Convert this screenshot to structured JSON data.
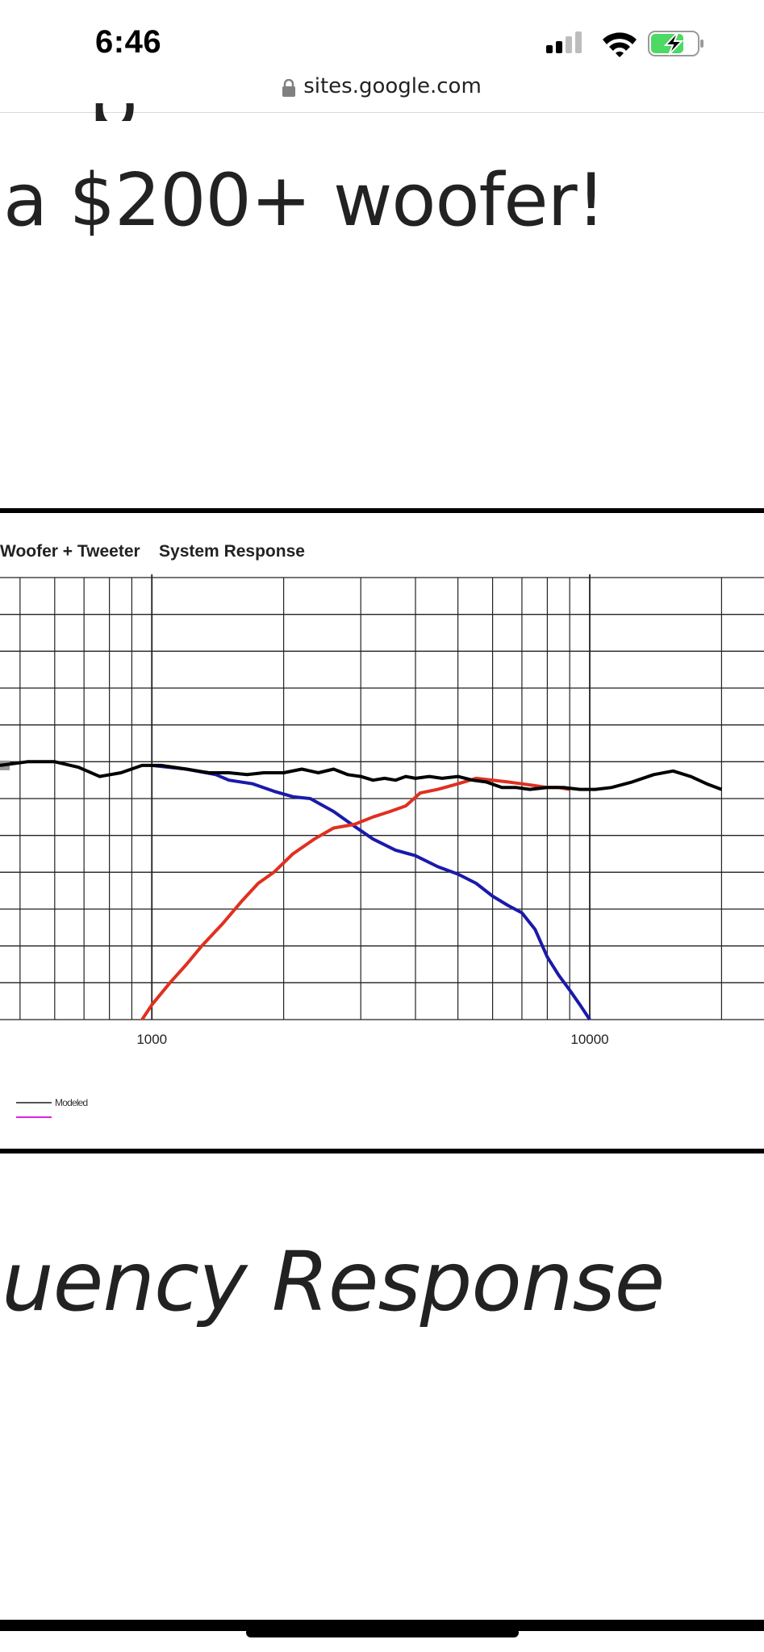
{
  "status_bar": {
    "time": "6:46",
    "icons": [
      "cellular-signal-icon",
      "wifi-icon",
      "battery-charging-icon"
    ]
  },
  "browser": {
    "url": "sites.google.com",
    "lock_icon": "lock-icon"
  },
  "page": {
    "headline": "a $200+ woofer!",
    "subheading": "uency Response"
  },
  "chart_data": {
    "type": "line",
    "title": "Woofer + Tweeter    System Response",
    "x_scale": "log",
    "x_tick_labels": [
      "1000",
      "10000"
    ],
    "x_ticks": [
      1000,
      10000
    ],
    "xlim": [
      450,
      25000
    ],
    "ylim": [
      -12,
      0
    ],
    "grid": true,
    "legend": {
      "placement": "bottom-left",
      "entries": [
        "Modeled",
        ""
      ]
    },
    "colors": {
      "system": "#000000",
      "woofer": "#1a1aaa",
      "tweeter": "#e03020",
      "modeled": "#555555",
      "legend_magenta": "#dd22dd"
    },
    "series": [
      {
        "x": [
          450,
          520,
          600,
          680,
          760,
          850,
          950,
          1050,
          1200,
          1350,
          1500,
          1650,
          1800,
          2000,
          2200,
          2400,
          2600,
          2800,
          3000,
          3200,
          3400,
          3600,
          3800,
          4000,
          4300,
          4600,
          5000,
          5400,
          5800,
          6300,
          6800,
          7300,
          8000,
          8700,
          9500,
          10300,
          11200,
          12500,
          14000,
          15500,
          17000,
          18500,
          20000
        ],
        "y": [
          -5.1,
          -5.0,
          -5.0,
          -5.15,
          -5.4,
          -5.3,
          -5.1,
          -5.1,
          -5.2,
          -5.3,
          -5.3,
          -5.35,
          -5.3,
          -5.3,
          -5.2,
          -5.3,
          -5.2,
          -5.35,
          -5.4,
          -5.5,
          -5.45,
          -5.5,
          -5.4,
          -5.45,
          -5.4,
          -5.45,
          -5.4,
          -5.5,
          -5.55,
          -5.7,
          -5.7,
          -5.75,
          -5.7,
          -5.7,
          -5.75,
          -5.75,
          -5.7,
          -5.55,
          -5.35,
          -5.25,
          -5.4,
          -5.6,
          -5.75
        ]
      },
      {
        "x": [
          1000,
          1200,
          1400,
          1500,
          1700,
          1900,
          2100,
          2300,
          2600,
          2900,
          3200,
          3600,
          4000,
          4500,
          5000,
          5500,
          6000,
          6500,
          7000,
          7500,
          8000,
          8500,
          9000,
          9500,
          10000
        ],
        "y": [
          -5.1,
          -5.2,
          -5.35,
          -5.5,
          -5.6,
          -5.8,
          -5.95,
          -6.0,
          -6.35,
          -6.75,
          -7.1,
          -7.4,
          -7.55,
          -7.85,
          -8.05,
          -8.3,
          -8.65,
          -8.9,
          -9.1,
          -9.55,
          -10.3,
          -10.8,
          -11.2,
          -11.6,
          -12.0
        ]
      },
      {
        "x": [
          950,
          1000,
          1100,
          1200,
          1300,
          1450,
          1600,
          1750,
          1900,
          2100,
          2350,
          2600,
          2900,
          3200,
          3500,
          3800,
          4100,
          4500,
          5000,
          5500,
          6000,
          6500,
          7000,
          7500,
          8000,
          8500,
          9000
        ],
        "y": [
          -12.0,
          -11.6,
          -11.0,
          -10.5,
          -10.0,
          -9.4,
          -8.8,
          -8.3,
          -8.0,
          -7.5,
          -7.1,
          -6.8,
          -6.7,
          -6.5,
          -6.35,
          -6.2,
          -5.85,
          -5.75,
          -5.6,
          -5.45,
          -5.5,
          -5.55,
          -5.6,
          -5.65,
          -5.7,
          -5.7,
          -5.75
        ]
      }
    ]
  }
}
